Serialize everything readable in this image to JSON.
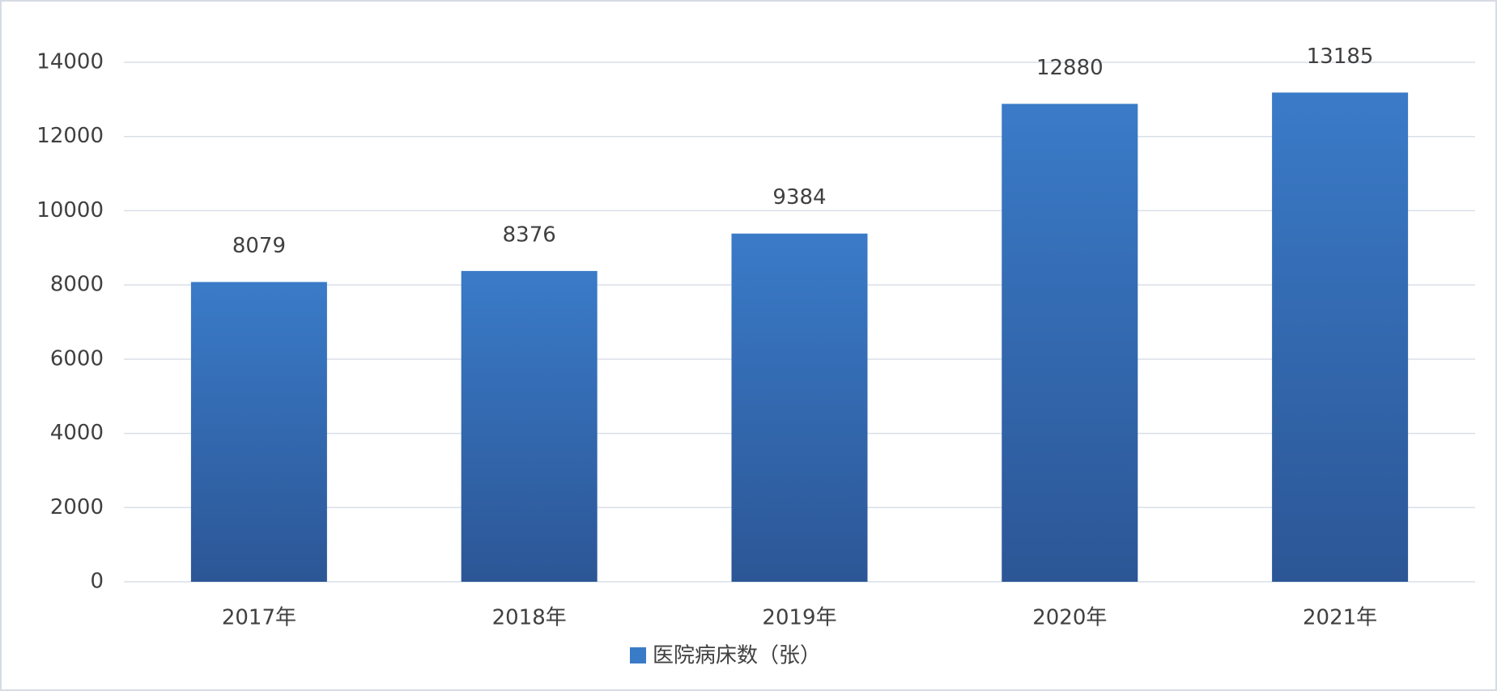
{
  "chart_data": {
    "type": "bar",
    "categories": [
      "2017年",
      "2018年",
      "2019年",
      "2020年",
      "2021年"
    ],
    "series": [
      {
        "name": "医院病床数（张）",
        "color": "#3a7bc8",
        "values": [
          8079,
          8376,
          9384,
          12880,
          13185
        ]
      }
    ],
    "ylim": [
      0,
      14000
    ],
    "yticks": [
      0,
      2000,
      4000,
      6000,
      8000,
      10000,
      12000,
      14000
    ],
    "grid": true,
    "legend": "bottom"
  }
}
